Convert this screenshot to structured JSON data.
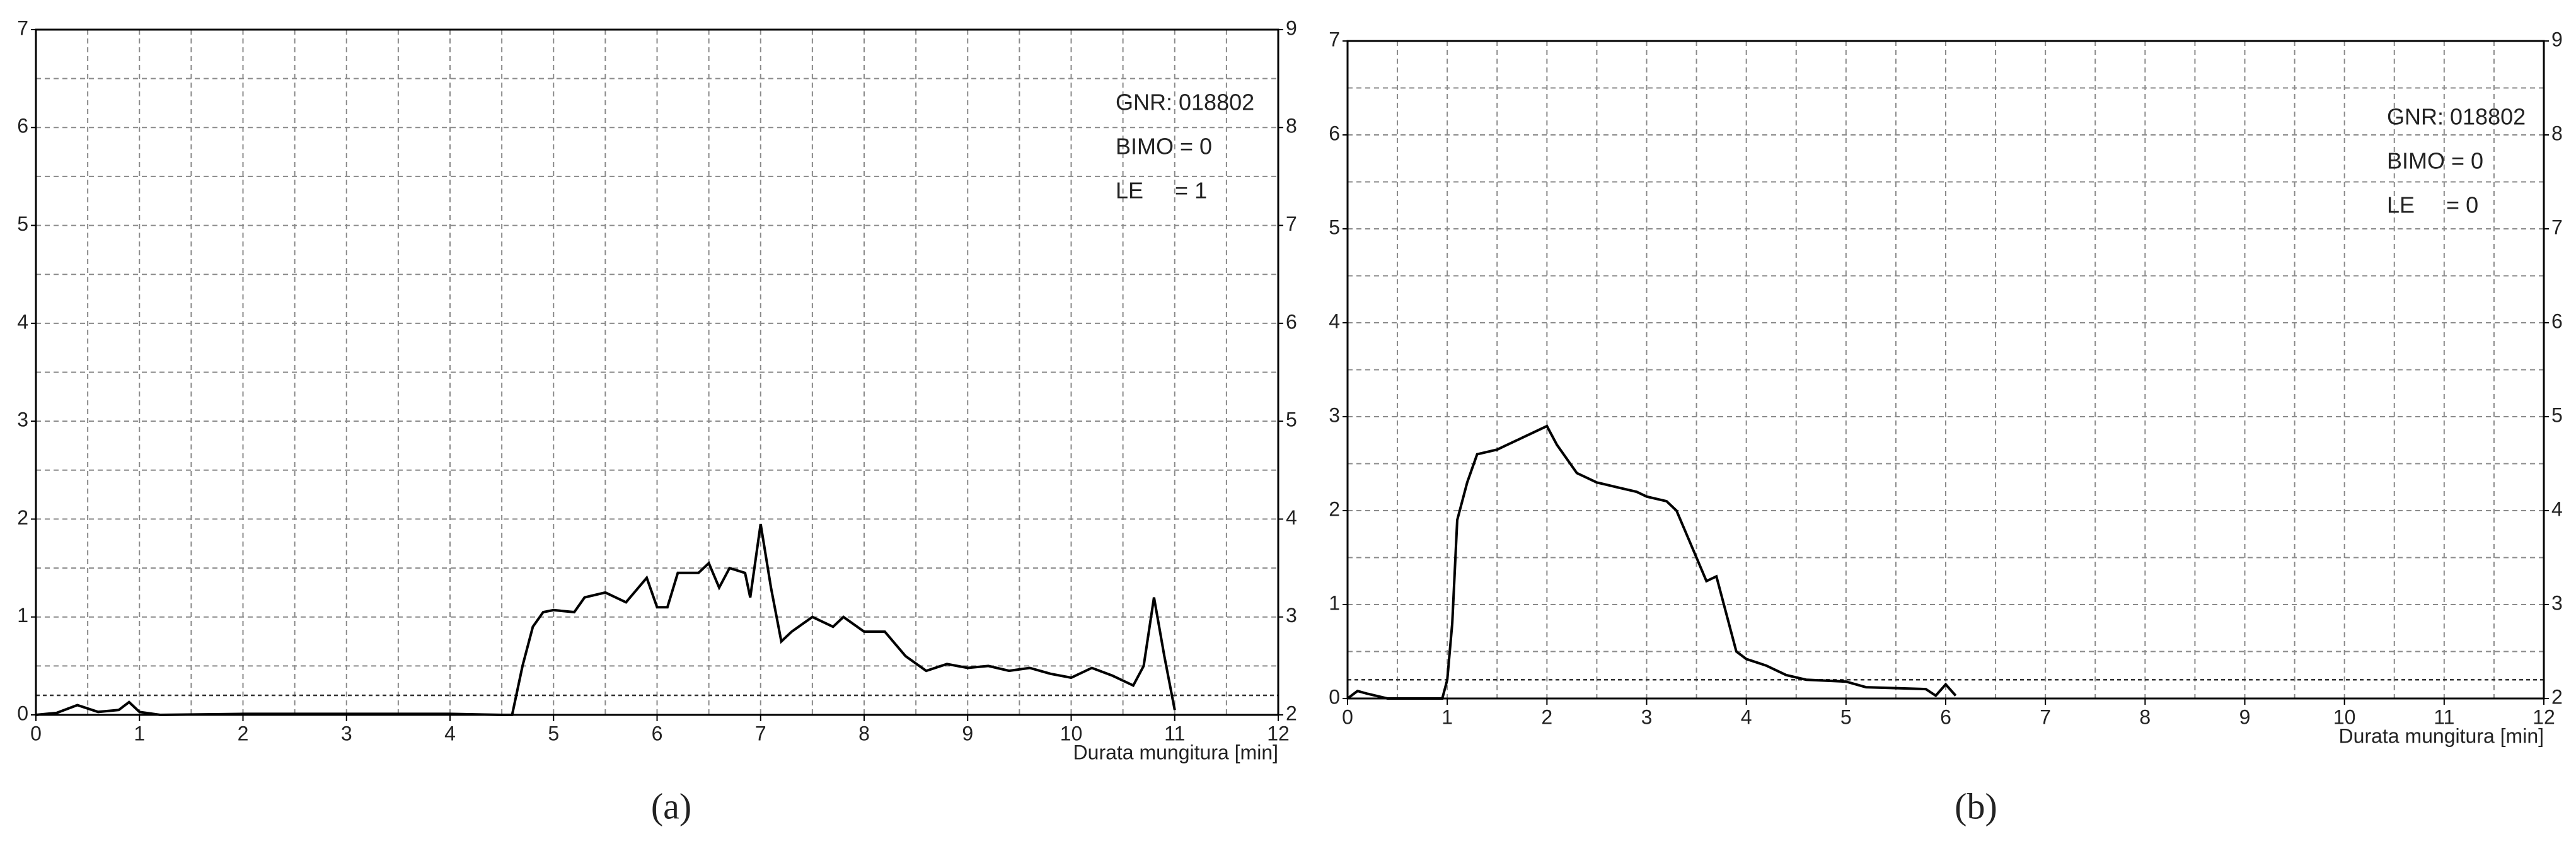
{
  "chart_data": [
    {
      "type": "line",
      "caption": "(a)",
      "xlabel": "Durata mungitura [min]",
      "annotations": [
        "GNR: 018802",
        "BIMO = 0",
        "LE     = 1"
      ],
      "xlim": [
        0,
        12
      ],
      "xticks": [
        0,
        1,
        2,
        3,
        4,
        5,
        6,
        7,
        8,
        9,
        10,
        11,
        12
      ],
      "ylim": [
        0,
        7
      ],
      "yticks": [
        0,
        1,
        2,
        3,
        4,
        5,
        6,
        7
      ],
      "y2lim": [
        2,
        9
      ],
      "y2ticks": [
        2,
        3,
        4,
        5,
        6,
        7,
        8,
        9
      ],
      "grid": true,
      "threshold": 0.2,
      "color": "#000000",
      "x": [
        0,
        0.2,
        0.4,
        0.6,
        0.8,
        0.9,
        1.0,
        1.2,
        2,
        3,
        4,
        4.5,
        4.6,
        4.7,
        4.8,
        4.9,
        5.0,
        5.2,
        5.3,
        5.5,
        5.7,
        5.9,
        6.0,
        6.1,
        6.2,
        6.4,
        6.5,
        6.6,
        6.7,
        6.85,
        6.9,
        7.0,
        7.1,
        7.2,
        7.3,
        7.5,
        7.7,
        7.8,
        8.0,
        8.2,
        8.4,
        8.6,
        8.8,
        9.0,
        9.2,
        9.4,
        9.6,
        9.8,
        10.0,
        10.2,
        10.4,
        10.6,
        10.7,
        10.8,
        10.9,
        11.0
      ],
      "values": [
        0,
        0.02,
        0.1,
        0.03,
        0.05,
        0.13,
        0.03,
        0,
        0.01,
        0.01,
        0.01,
        0,
        0,
        0.5,
        0.9,
        1.05,
        1.07,
        1.05,
        1.2,
        1.25,
        1.15,
        1.4,
        1.1,
        1.1,
        1.45,
        1.45,
        1.55,
        1.3,
        1.5,
        1.45,
        1.2,
        1.95,
        1.3,
        0.75,
        0.85,
        1.0,
        0.9,
        1.0,
        0.85,
        0.85,
        0.6,
        0.45,
        0.52,
        0.48,
        0.5,
        0.45,
        0.48,
        0.42,
        0.38,
        0.48,
        0.4,
        0.3,
        0.5,
        1.2,
        0.6,
        0.05
      ]
    },
    {
      "type": "line",
      "caption": "(b)",
      "xlabel": "Durata mungitura [min]",
      "annotations": [
        "GNR: 018802",
        "BIMO = 0",
        "LE     = 0"
      ],
      "xlim": [
        0,
        12
      ],
      "xticks": [
        0,
        1,
        2,
        3,
        4,
        5,
        6,
        7,
        8,
        9,
        10,
        11,
        12
      ],
      "ylim": [
        0,
        7
      ],
      "yticks": [
        0,
        1,
        2,
        3,
        4,
        5,
        6,
        7
      ],
      "y2lim": [
        2,
        9
      ],
      "y2ticks": [
        2,
        3,
        4,
        5,
        6,
        7,
        8,
        9
      ],
      "grid": true,
      "threshold": 0.2,
      "color": "#000000",
      "x": [
        0,
        0.1,
        0.2,
        0.4,
        0.95,
        1.0,
        1.05,
        1.1,
        1.2,
        1.3,
        1.5,
        1.6,
        1.8,
        2.0,
        2.1,
        2.3,
        2.5,
        2.7,
        2.9,
        3.0,
        3.2,
        3.3,
        3.5,
        3.6,
        3.7,
        3.8,
        3.9,
        4.0,
        4.2,
        4.4,
        4.6,
        5.0,
        5.2,
        5.8,
        5.9,
        6.0,
        6.1
      ],
      "values": [
        0,
        0.08,
        0.05,
        0,
        0,
        0.2,
        0.8,
        1.9,
        2.3,
        2.6,
        2.65,
        2.7,
        2.8,
        2.9,
        2.7,
        2.4,
        2.3,
        2.25,
        2.2,
        2.15,
        2.1,
        2.0,
        1.5,
        1.25,
        1.3,
        0.9,
        0.5,
        0.42,
        0.35,
        0.25,
        0.2,
        0.18,
        0.12,
        0.1,
        0.03,
        0.15,
        0.03
      ]
    }
  ]
}
